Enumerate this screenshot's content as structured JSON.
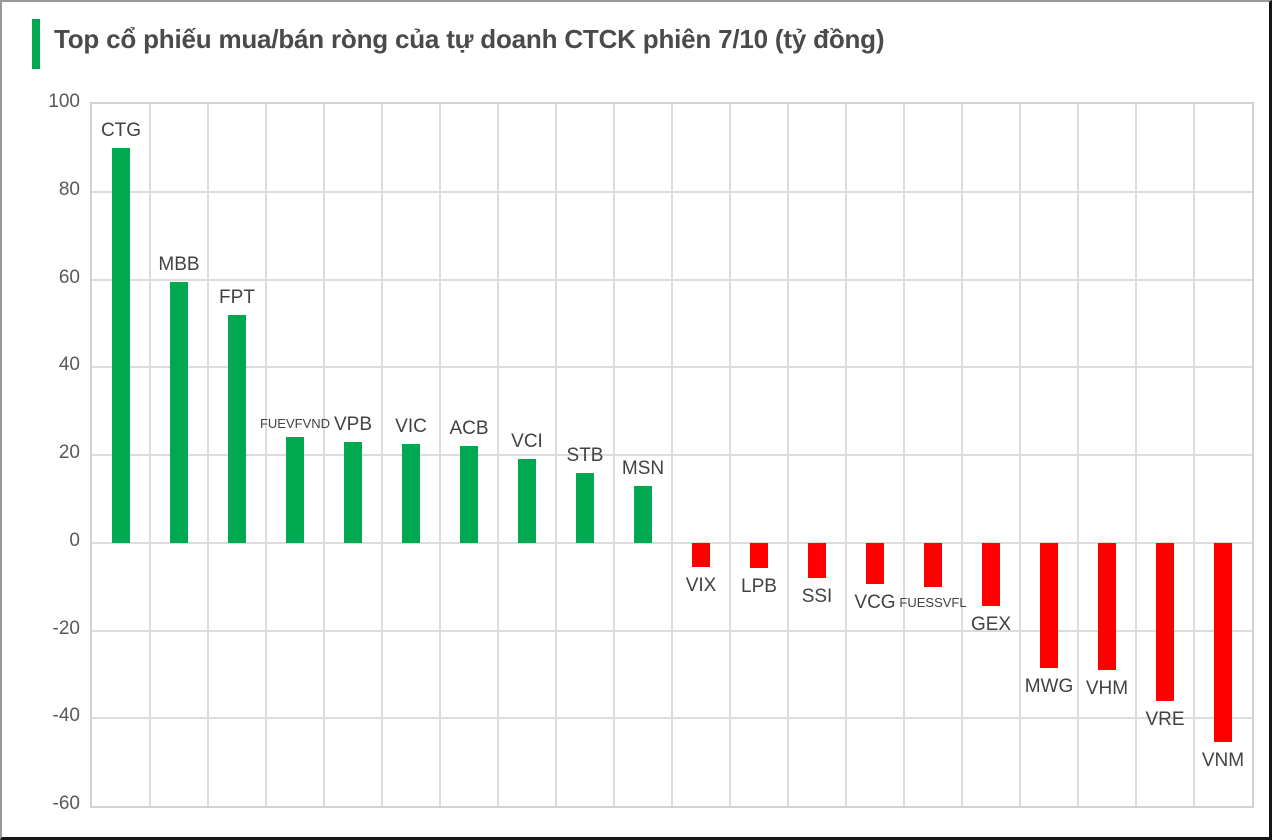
{
  "header": {
    "title": "Top cổ phiếu mua/bán ròng của tự doanh CTCK phiên 7/10 (tỷ đồng)",
    "accent_color": "#00A94F"
  },
  "chart_data": {
    "type": "bar",
    "title": "Top cổ phiếu mua/bán ròng của tự doanh CTCK phiên 7/10 (tỷ đồng)",
    "unit": "tỷ đồng",
    "categories": [
      "CTG",
      "MBB",
      "FPT",
      "FUEVFVND",
      "VPB",
      "VIC",
      "ACB",
      "VCI",
      "STB",
      "MSN",
      "VIX",
      "LPB",
      "SSI",
      "VCG",
      "FUESSVFL",
      "GEX",
      "MWG",
      "VHM",
      "VRE",
      "VNM"
    ],
    "values": [
      90,
      59.5,
      52,
      24,
      23,
      22.5,
      22,
      19,
      16,
      13,
      -5.5,
      -5.8,
      -8,
      -9.5,
      -10,
      -14.5,
      -28.5,
      -29,
      -36,
      -45.5
    ],
    "small_font_categories": [
      "FUEVFVND",
      "FUESSVFL"
    ],
    "positive_color": "#00A94F",
    "negative_color": "#FF0000",
    "ylim": [
      -60,
      100
    ],
    "yticks": [
      100,
      80,
      60,
      40,
      20,
      0,
      -20,
      -40,
      -60
    ],
    "grid": true,
    "vertical_category_gridlines": true,
    "legend_position": "none",
    "xlabel": "",
    "ylabel": ""
  },
  "colors": {
    "gridline": "#dcdcdc",
    "plot_border": "#d2d2d2",
    "title_text": "#4a4a4a",
    "axis_text": "#595959",
    "label_text": "#424242"
  }
}
